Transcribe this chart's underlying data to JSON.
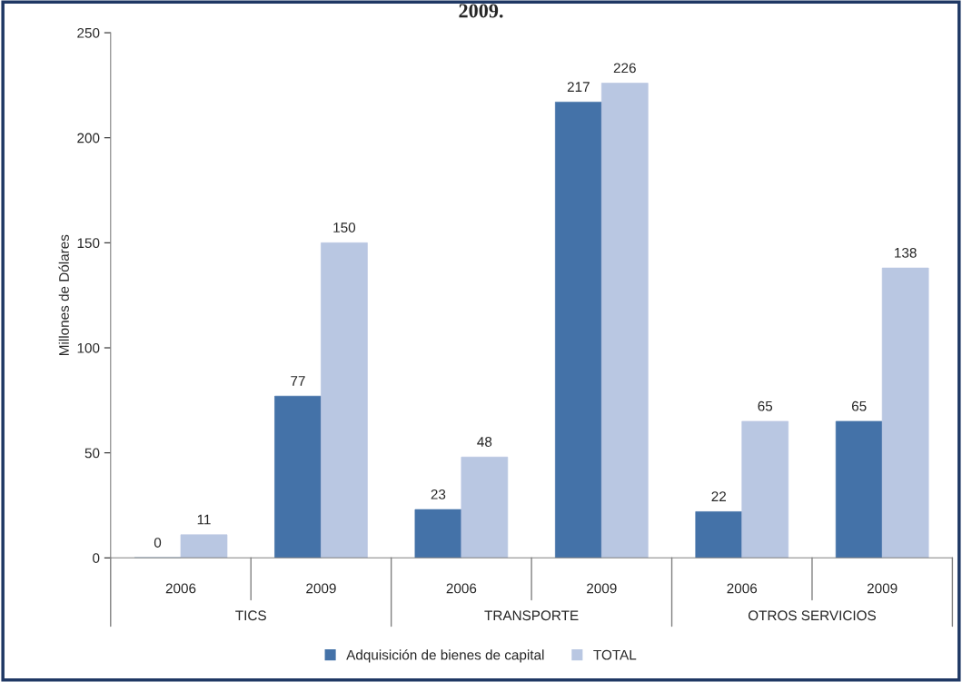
{
  "chart_data": {
    "type": "bar",
    "title": "2009.",
    "ylabel": "Millones de Dólares",
    "categories": [
      "2006",
      "2009",
      "2006",
      "2009",
      "2006",
      "2009"
    ],
    "series": [
      {
        "name": "Adquisición de bienes de capital",
        "color": "#4472a8",
        "values": [
          0,
          77,
          23,
          217,
          22,
          65
        ]
      },
      {
        "name": "TOTAL",
        "color": "#b9c7e2",
        "values": [
          11,
          150,
          48,
          226,
          65,
          138
        ]
      }
    ],
    "annotations": [
      "TICS",
      "TRANSPORTE",
      "OTROS SERVICIOS"
    ],
    "ylim": [
      0,
      250
    ],
    "yticks": [
      0,
      50,
      100,
      150,
      200,
      250
    ],
    "data_labels": true,
    "legend": "bottom",
    "grid": false
  }
}
